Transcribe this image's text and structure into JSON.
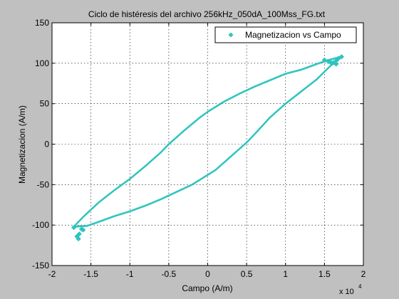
{
  "chart_data": {
    "type": "scatter",
    "title": "Ciclo de histéresis del archivo 256kHz_050dA_100Mss_FG.txt",
    "xlabel": "Campo (A/m)",
    "ylabel": "Magnetizacion (A/m)",
    "x_multiplier_label": "x 10",
    "x_multiplier_exponent": "4",
    "xlim": [
      -2,
      2
    ],
    "ylim": [
      -150,
      150
    ],
    "x_ticks": [
      -2,
      -1.5,
      -1,
      -0.5,
      0,
      0.5,
      1,
      1.5,
      2
    ],
    "x_tick_labels": [
      "-2",
      "-1.5",
      "-1",
      "-0.5",
      "0",
      "0.5",
      "1",
      "1.5",
      "2"
    ],
    "y_ticks": [
      -150,
      -100,
      -50,
      0,
      50,
      100,
      150
    ],
    "y_tick_labels": [
      "-150",
      "-100",
      "-50",
      "0",
      "50",
      "100",
      "150"
    ],
    "grid": true,
    "legend_position": "top-right",
    "series": [
      {
        "name": "Magnetizacion vs Campo",
        "color": "#2ec4be",
        "marker": "diamond",
        "upper_branch": {
          "x": [
            -1.72,
            -1.6,
            -1.4,
            -1.2,
            -1.0,
            -0.8,
            -0.6,
            -0.5,
            -0.3,
            -0.1,
            0.0,
            0.2,
            0.4,
            0.6,
            0.8,
            1.0,
            1.2,
            1.4,
            1.55,
            1.72
          ],
          "y": [
            -102,
            -90,
            -72,
            -57,
            -43,
            -27,
            -10,
            0,
            17,
            33,
            40,
            52,
            62,
            71,
            79,
            87,
            92,
            99,
            104,
            108
          ]
        },
        "lower_branch": {
          "x": [
            1.72,
            1.6,
            1.4,
            1.2,
            1.0,
            0.8,
            0.6,
            0.5,
            0.3,
            0.1,
            0.0,
            -0.2,
            -0.4,
            -0.6,
            -0.8,
            -1.0,
            -1.2,
            -1.4,
            -1.55,
            -1.72
          ],
          "y": [
            108,
            99,
            80,
            65,
            50,
            33,
            12,
            2,
            -15,
            -32,
            -38,
            -50,
            -59,
            -68,
            -76,
            -83,
            -89,
            -96,
            -101,
            -102
          ]
        },
        "scattered_points": {
          "x": [
            1.5,
            1.55,
            1.6,
            1.65,
            1.58,
            1.62,
            1.72,
            1.68,
            1.66,
            -1.65,
            -1.68,
            -1.62,
            -1.66,
            -1.6,
            -1.72
          ],
          "y": [
            104,
            102,
            100,
            99,
            101,
            101,
            108,
            106,
            104,
            -111,
            -114,
            -105,
            -117,
            -106,
            -103
          ]
        }
      }
    ]
  }
}
